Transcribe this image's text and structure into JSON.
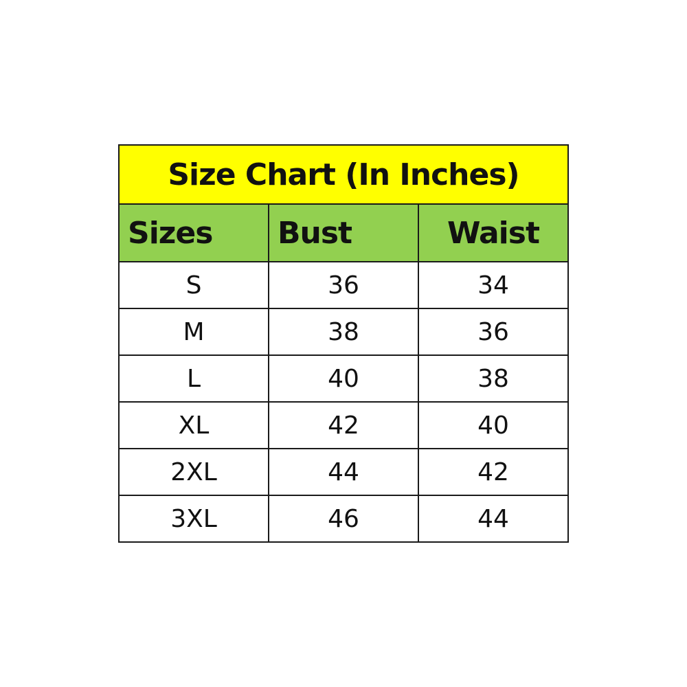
{
  "title": "Size Chart (In Inches)",
  "headers": [
    "Sizes",
    "Bust",
    "Waist"
  ],
  "rows": [
    [
      "S",
      "36",
      "34"
    ],
    [
      "M",
      "38",
      "36"
    ],
    [
      "L",
      "40",
      "38"
    ],
    [
      "XL",
      "42",
      "40"
    ],
    [
      "2XL",
      "44",
      "42"
    ],
    [
      "3XL",
      "46",
      "44"
    ]
  ],
  "colors": {
    "title_bg": "#FFFF00",
    "header_bg": "#92D050"
  }
}
